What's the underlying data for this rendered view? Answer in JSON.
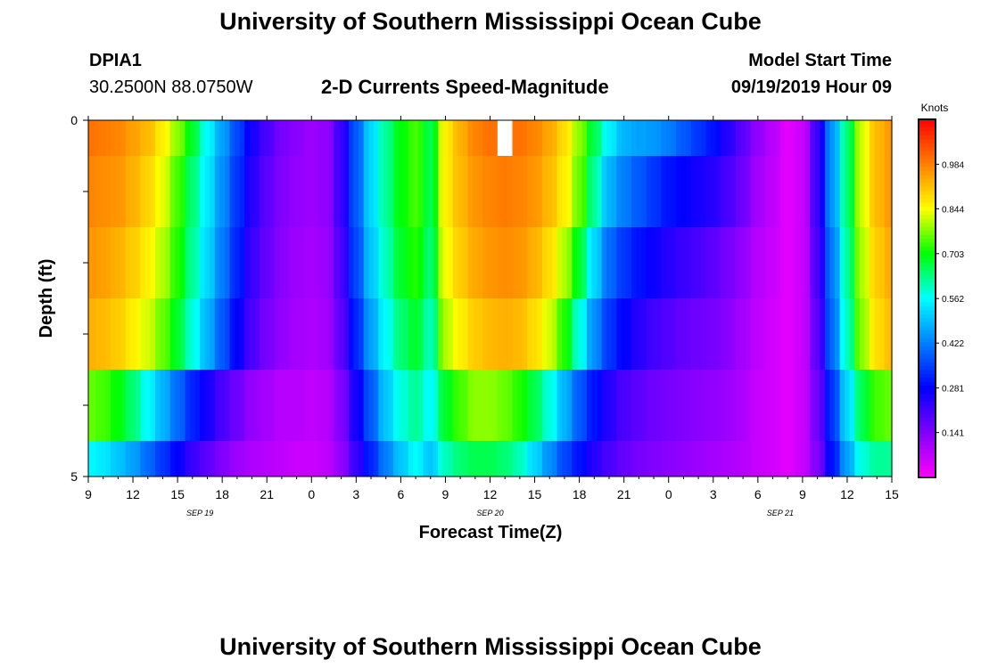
{
  "header": {
    "title": "University of Southern Mississippi Ocean Cube",
    "station": "DPIA1",
    "coords": "30.2500N 88.0750W",
    "chart_title": "2-D Currents Speed-Magnitude",
    "model_label": "Model Start Time",
    "model_time": "09/19/2019 Hour 09"
  },
  "footer": {
    "title": "University of Southern Mississippi Ocean Cube"
  },
  "colors": {
    "colormap": [
      "#ff00ff",
      "#8000ff",
      "#0000ff",
      "#0080ff",
      "#00ffff",
      "#00ff00",
      "#ffff00",
      "#ff8000",
      "#ff0000"
    ],
    "missing": "#ffffff"
  },
  "chart_data": {
    "type": "heatmap",
    "title": "2-D Currents Speed-Magnitude",
    "xlabel": "Forecast Time(Z)",
    "ylabel": "Depth (ft)",
    "x_ticks": [
      "9",
      "12",
      "15",
      "18",
      "21",
      "0",
      "3",
      "6",
      "9",
      "12",
      "15",
      "18",
      "21",
      "0",
      "3",
      "6",
      "9",
      "12",
      "15"
    ],
    "x_tick_hours": [
      0,
      3,
      6,
      9,
      12,
      15,
      18,
      21,
      24,
      27,
      30,
      33,
      36,
      39,
      42,
      45,
      48,
      51,
      54
    ],
    "date_labels": [
      {
        "label": "SEP 19",
        "hour": 7.5
      },
      {
        "label": "SEP 20",
        "hour": 27
      },
      {
        "label": "SEP 21",
        "hour": 46.5
      }
    ],
    "y_ticks": [
      "0",
      "5"
    ],
    "ylim": [
      0,
      5
    ],
    "colorbar": {
      "label": "Knots",
      "ticks": [
        "0.984",
        "0.844",
        "0.703",
        "0.562",
        "0.422",
        "0.281",
        "0.141"
      ],
      "tick_values": [
        0.984,
        0.844,
        0.703,
        0.562,
        0.422,
        0.281,
        0.141
      ],
      "range": [
        0.0,
        1.125
      ]
    },
    "hours": [
      0,
      1,
      2,
      3,
      4,
      5,
      6,
      7,
      8,
      9,
      10,
      11,
      12,
      13,
      14,
      15,
      16,
      17,
      18,
      19,
      20,
      21,
      22,
      23,
      24,
      25,
      26,
      27,
      28,
      29,
      30,
      31,
      32,
      33,
      34,
      35,
      36,
      37,
      38,
      39,
      40,
      41,
      42,
      43,
      44,
      45,
      46,
      47,
      48,
      49,
      50,
      51,
      52,
      53,
      54
    ],
    "depth_rows": [
      {
        "top": 0.0,
        "bottom": 0.5,
        "values": [
          1.0,
          0.99,
          0.98,
          0.95,
          0.92,
          0.86,
          0.78,
          0.68,
          0.56,
          0.46,
          0.36,
          0.26,
          0.2,
          0.15,
          0.13,
          0.11,
          0.12,
          0.22,
          0.38,
          0.52,
          0.62,
          0.7,
          0.74,
          0.66,
          0.86,
          0.93,
          0.98,
          1.0,
          null,
          1.0,
          0.98,
          0.94,
          0.88,
          0.78,
          0.66,
          0.55,
          0.48,
          0.46,
          0.45,
          0.42,
          0.38,
          0.34,
          0.3,
          0.24,
          0.18,
          0.12,
          0.08,
          0.03,
          0.06,
          0.22,
          0.45,
          0.64,
          0.82,
          0.92,
          0.96
        ]
      },
      {
        "top": 0.5,
        "bottom": 1.5,
        "values": [
          0.98,
          0.97,
          0.96,
          0.93,
          0.89,
          0.83,
          0.74,
          0.64,
          0.54,
          0.44,
          0.34,
          0.24,
          0.18,
          0.14,
          0.12,
          0.11,
          0.12,
          0.22,
          0.38,
          0.52,
          0.62,
          0.7,
          0.74,
          0.66,
          0.86,
          0.92,
          0.96,
          0.98,
          0.99,
          0.98,
          0.96,
          0.92,
          0.86,
          0.76,
          0.62,
          0.48,
          0.42,
          0.38,
          0.34,
          0.3,
          0.28,
          0.26,
          0.24,
          0.2,
          0.16,
          0.1,
          0.07,
          0.03,
          0.06,
          0.22,
          0.45,
          0.64,
          0.82,
          0.92,
          0.96
        ]
      },
      {
        "top": 1.5,
        "bottom": 2.5,
        "values": [
          0.96,
          0.95,
          0.93,
          0.9,
          0.86,
          0.8,
          0.72,
          0.62,
          0.52,
          0.42,
          0.32,
          0.22,
          0.17,
          0.13,
          0.11,
          0.1,
          0.11,
          0.2,
          0.36,
          0.5,
          0.6,
          0.68,
          0.72,
          0.64,
          0.84,
          0.9,
          0.94,
          0.96,
          0.97,
          0.96,
          0.93,
          0.88,
          0.8,
          0.68,
          0.52,
          0.4,
          0.34,
          0.3,
          0.27,
          0.24,
          0.22,
          0.2,
          0.18,
          0.15,
          0.12,
          0.08,
          0.06,
          0.03,
          0.06,
          0.2,
          0.42,
          0.62,
          0.8,
          0.9,
          0.94
        ]
      },
      {
        "top": 2.5,
        "bottom": 3.5,
        "values": [
          0.93,
          0.92,
          0.9,
          0.86,
          0.82,
          0.76,
          0.68,
          0.58,
          0.48,
          0.38,
          0.28,
          0.2,
          0.15,
          0.12,
          0.1,
          0.09,
          0.1,
          0.18,
          0.32,
          0.46,
          0.56,
          0.64,
          0.68,
          0.6,
          0.8,
          0.86,
          0.9,
          0.92,
          0.93,
          0.92,
          0.88,
          0.82,
          0.72,
          0.58,
          0.44,
          0.34,
          0.28,
          0.24,
          0.21,
          0.19,
          0.17,
          0.16,
          0.15,
          0.13,
          0.1,
          0.07,
          0.05,
          0.03,
          0.06,
          0.18,
          0.4,
          0.6,
          0.78,
          0.88,
          0.92
        ]
      },
      {
        "top": 3.5,
        "bottom": 4.5,
        "values": [
          0.76,
          0.74,
          0.7,
          0.64,
          0.56,
          0.48,
          0.4,
          0.32,
          0.26,
          0.2,
          0.16,
          0.12,
          0.1,
          0.08,
          0.08,
          0.07,
          0.08,
          0.14,
          0.26,
          0.38,
          0.5,
          0.58,
          0.62,
          0.56,
          0.68,
          0.74,
          0.78,
          0.78,
          0.76,
          0.72,
          0.66,
          0.58,
          0.48,
          0.38,
          0.3,
          0.24,
          0.2,
          0.18,
          0.16,
          0.15,
          0.14,
          0.13,
          0.12,
          0.11,
          0.09,
          0.06,
          0.05,
          0.03,
          0.06,
          0.16,
          0.34,
          0.52,
          0.66,
          0.74,
          0.76
        ]
      },
      {
        "top": 4.5,
        "bottom": 5.0,
        "values": [
          0.56,
          0.54,
          0.5,
          0.46,
          0.4,
          0.34,
          0.28,
          0.22,
          0.18,
          0.14,
          0.11,
          0.09,
          0.08,
          0.07,
          0.06,
          0.06,
          0.07,
          0.12,
          0.22,
          0.32,
          0.42,
          0.5,
          0.56,
          0.5,
          0.6,
          0.64,
          0.66,
          0.66,
          0.64,
          0.6,
          0.52,
          0.44,
          0.36,
          0.3,
          0.24,
          0.2,
          0.17,
          0.15,
          0.14,
          0.13,
          0.12,
          0.11,
          0.1,
          0.09,
          0.08,
          0.06,
          0.05,
          0.03,
          0.06,
          0.14,
          0.3,
          0.46,
          0.58,
          0.62,
          0.62
        ]
      }
    ]
  }
}
